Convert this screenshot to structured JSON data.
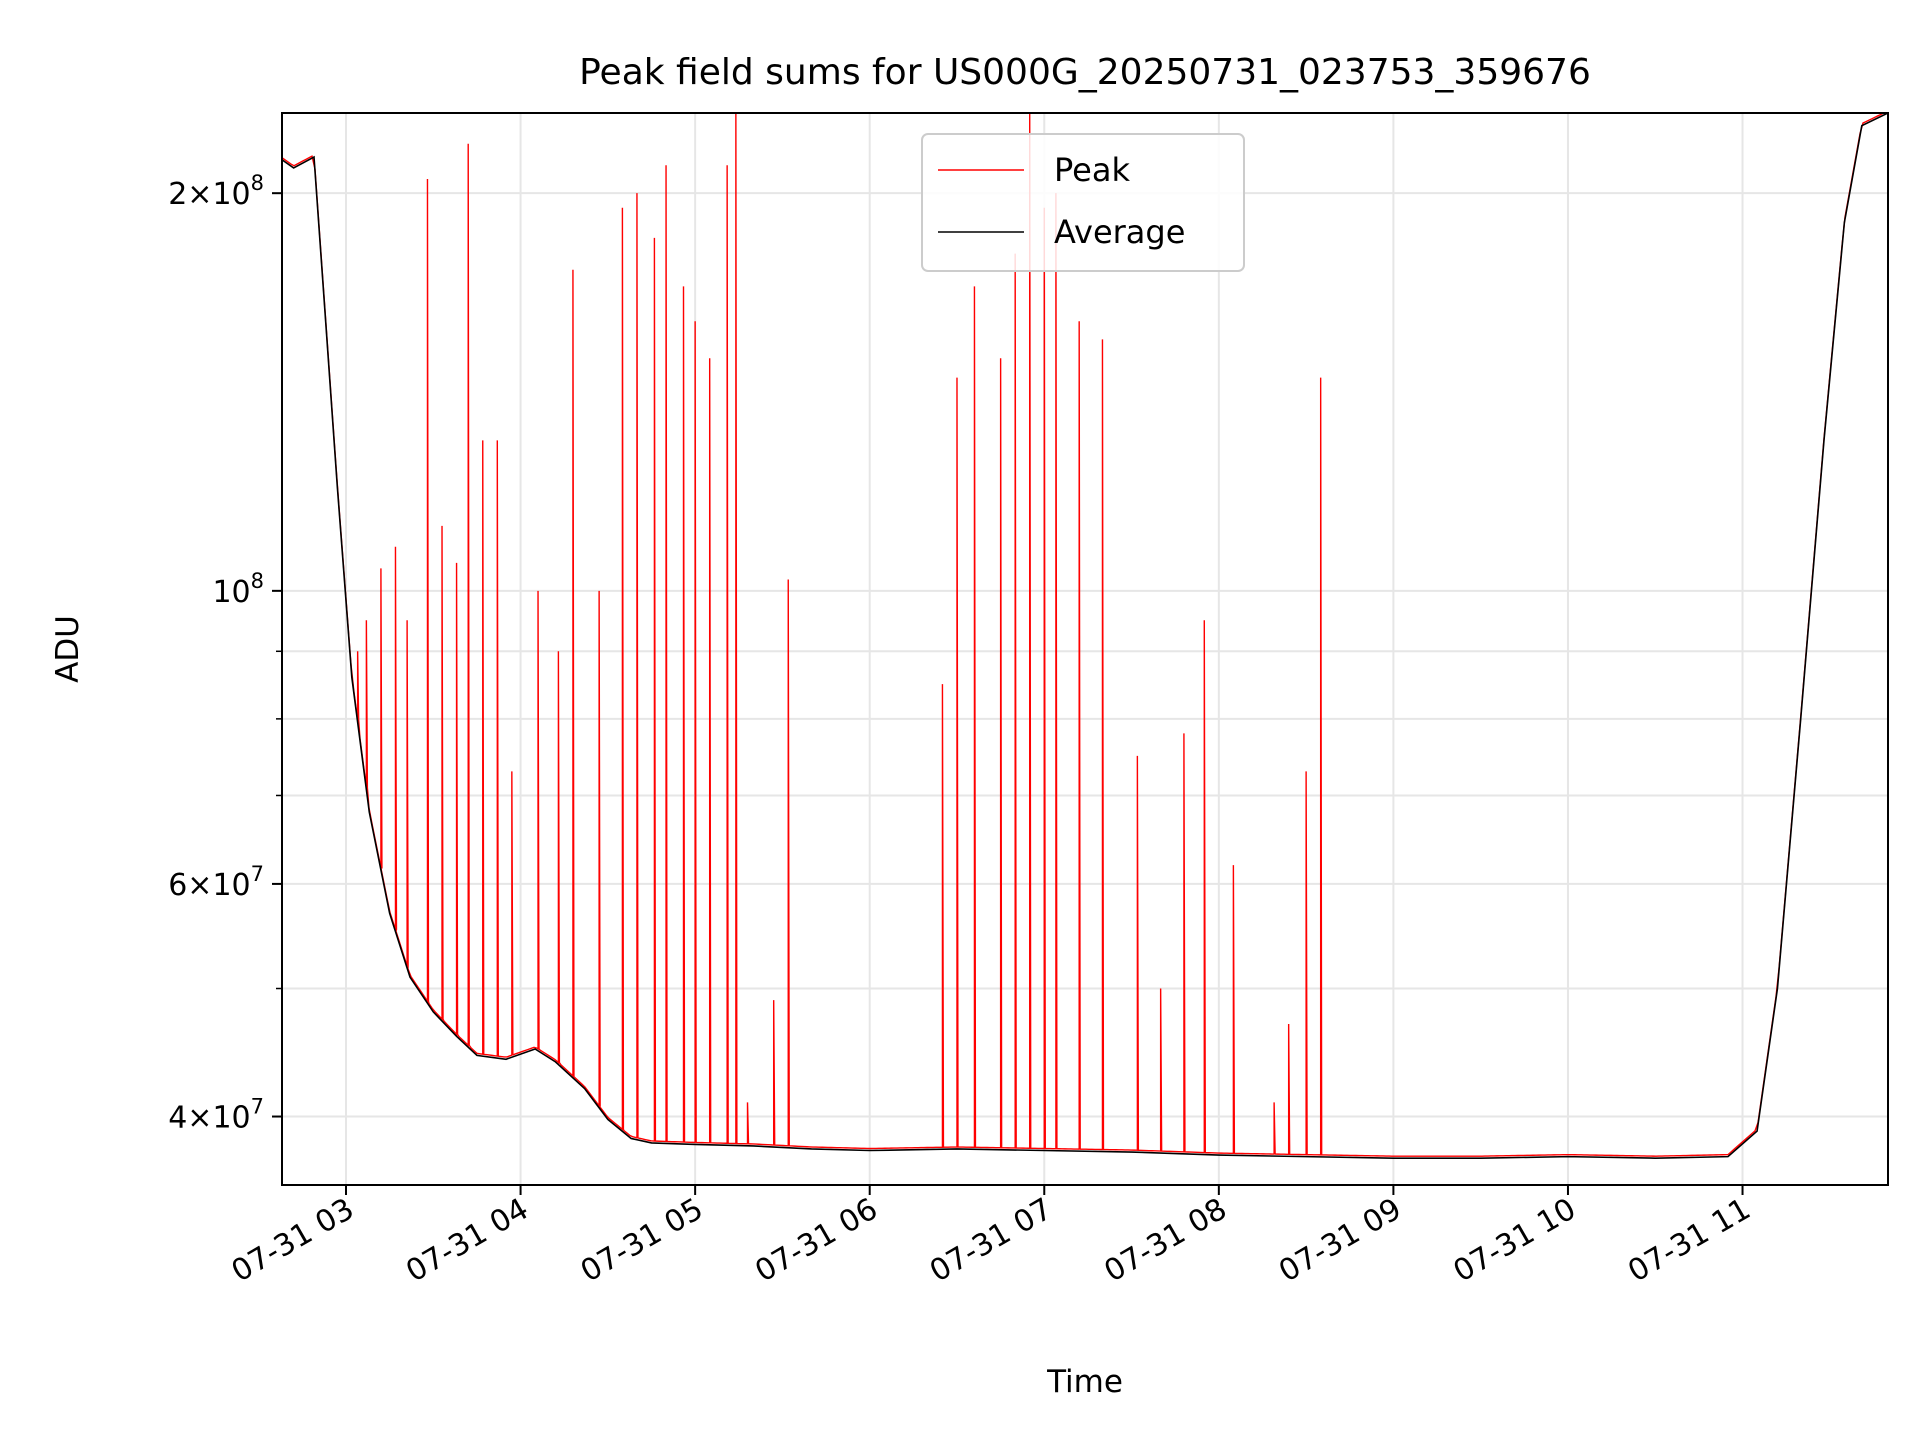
{
  "chart_data": {
    "type": "line",
    "title": "Peak field sums for US000G_20250731_023753_359676",
    "xlabel": "Time",
    "ylabel": "ADU",
    "x_scale": "time",
    "y_scale": "log",
    "xlim": [
      "2025-07-31 02:38",
      "2025-07-31 11:50"
    ],
    "ylim": [
      35500000.0,
      230000000.0
    ],
    "grid": true,
    "legend_position": "top-center",
    "x_ticks": [
      {
        "value": "2025-07-31 03:00",
        "label": "07-31 03"
      },
      {
        "value": "2025-07-31 04:00",
        "label": "07-31 04"
      },
      {
        "value": "2025-07-31 05:00",
        "label": "07-31 05"
      },
      {
        "value": "2025-07-31 06:00",
        "label": "07-31 06"
      },
      {
        "value": "2025-07-31 07:00",
        "label": "07-31 07"
      },
      {
        "value": "2025-07-31 08:00",
        "label": "07-31 08"
      },
      {
        "value": "2025-07-31 09:00",
        "label": "07-31 09"
      },
      {
        "value": "2025-07-31 10:00",
        "label": "07-31 10"
      },
      {
        "value": "2025-07-31 11:00",
        "label": "07-31 11"
      }
    ],
    "y_ticks": [
      {
        "value": 40000000,
        "mantissa": "4",
        "exp": "7"
      },
      {
        "value": 60000000,
        "mantissa": "6",
        "exp": "7"
      },
      {
        "value": 100000000,
        "mantissa": "",
        "exp": "8"
      },
      {
        "value": 200000000,
        "mantissa": "2",
        "exp": "8"
      }
    ],
    "y_minor_ticks": [
      50000000,
      70000000,
      80000000,
      90000000
    ],
    "series": [
      {
        "name": "Average",
        "color": "#000000",
        "points": [
          [
            "2025-07-31 02:38",
            212000000.0
          ],
          [
            "2025-07-31 02:42",
            209000000.0
          ],
          [
            "2025-07-31 02:49",
            213000000.0
          ],
          [
            "2025-07-31 02:53",
            160000000.0
          ],
          [
            "2025-07-31 02:57",
            120000000.0
          ],
          [
            "2025-07-31 03:02",
            86000000.0
          ],
          [
            "2025-07-31 03:08",
            68000000.0
          ],
          [
            "2025-07-31 03:15",
            57000000.0
          ],
          [
            "2025-07-31 03:22",
            51000000.0
          ],
          [
            "2025-07-31 03:30",
            48000000.0
          ],
          [
            "2025-07-31 03:38",
            46000000.0
          ],
          [
            "2025-07-31 03:45",
            44500000.0
          ],
          [
            "2025-07-31 03:55",
            44200000.0
          ],
          [
            "2025-07-31 04:05",
            45000000.0
          ],
          [
            "2025-07-31 04:12",
            44000000.0
          ],
          [
            "2025-07-31 04:22",
            42000000.0
          ],
          [
            "2025-07-31 04:30",
            39800000.0
          ],
          [
            "2025-07-31 04:38",
            38500000.0
          ],
          [
            "2025-07-31 04:45",
            38200000.0
          ],
          [
            "2025-07-31 05:00",
            38100000.0
          ],
          [
            "2025-07-31 05:20",
            38000000.0
          ],
          [
            "2025-07-31 05:40",
            37800000.0
          ],
          [
            "2025-07-31 06:00",
            37700000.0
          ],
          [
            "2025-07-31 06:30",
            37800000.0
          ],
          [
            "2025-07-31 07:00",
            37700000.0
          ],
          [
            "2025-07-31 07:30",
            37600000.0
          ],
          [
            "2025-07-31 08:00",
            37400000.0
          ],
          [
            "2025-07-31 08:30",
            37300000.0
          ],
          [
            "2025-07-31 09:00",
            37200000.0
          ],
          [
            "2025-07-31 09:30",
            37200000.0
          ],
          [
            "2025-07-31 10:00",
            37300000.0
          ],
          [
            "2025-07-31 10:30",
            37200000.0
          ],
          [
            "2025-07-31 10:55",
            37300000.0
          ],
          [
            "2025-07-31 11:05",
            39000000.0
          ],
          [
            "2025-07-31 11:12",
            50000000.0
          ],
          [
            "2025-07-31 11:20",
            80000000.0
          ],
          [
            "2025-07-31 11:28",
            130000000.0
          ],
          [
            "2025-07-31 11:35",
            190000000.0
          ],
          [
            "2025-07-31 11:41",
            225000000.0
          ],
          [
            "2025-07-31 11:50",
            230000000.0
          ]
        ]
      },
      {
        "name": "Peak",
        "color": "#ff0000",
        "spikes": [
          [
            "2025-07-31 03:04",
            90000000.0
          ],
          [
            "2025-07-31 03:07",
            95000000.0
          ],
          [
            "2025-07-31 03:12",
            104000000.0
          ],
          [
            "2025-07-31 03:17",
            108000000.0
          ],
          [
            "2025-07-31 03:21",
            95000000.0
          ],
          [
            "2025-07-31 03:28",
            205000000.0
          ],
          [
            "2025-07-31 03:33",
            112000000.0
          ],
          [
            "2025-07-31 03:38",
            105000000.0
          ],
          [
            "2025-07-31 03:42",
            218000000.0
          ],
          [
            "2025-07-31 03:47",
            130000000.0
          ],
          [
            "2025-07-31 03:52",
            130000000.0
          ],
          [
            "2025-07-31 03:57",
            73000000.0
          ],
          [
            "2025-07-31 04:06",
            100000000.0
          ],
          [
            "2025-07-31 04:13",
            90000000.0
          ],
          [
            "2025-07-31 04:18",
            175000000.0
          ],
          [
            "2025-07-31 04:27",
            100000000.0
          ],
          [
            "2025-07-31 04:35",
            195000000.0
          ],
          [
            "2025-07-31 04:40",
            200000000.0
          ],
          [
            "2025-07-31 04:46",
            185000000.0
          ],
          [
            "2025-07-31 04:50",
            210000000.0
          ],
          [
            "2025-07-31 04:56",
            170000000.0
          ],
          [
            "2025-07-31 05:00",
            160000000.0
          ],
          [
            "2025-07-31 05:05",
            150000000.0
          ],
          [
            "2025-07-31 05:11",
            210000000.0
          ],
          [
            "2025-07-31 05:14",
            230000000.0
          ],
          [
            "2025-07-31 05:18",
            41000000.0
          ],
          [
            "2025-07-31 05:27",
            49000000.0
          ],
          [
            "2025-07-31 05:32",
            102000000.0
          ],
          [
            "2025-07-31 06:25",
            85000000.0
          ],
          [
            "2025-07-31 06:30",
            145000000.0
          ],
          [
            "2025-07-31 06:36",
            170000000.0
          ],
          [
            "2025-07-31 06:45",
            150000000.0
          ],
          [
            "2025-07-31 06:50",
            180000000.0
          ],
          [
            "2025-07-31 06:55",
            230000000.0
          ],
          [
            "2025-07-31 07:00",
            195000000.0
          ],
          [
            "2025-07-31 07:04",
            200000000.0
          ],
          [
            "2025-07-31 07:12",
            160000000.0
          ],
          [
            "2025-07-31 07:20",
            155000000.0
          ],
          [
            "2025-07-31 07:32",
            75000000.0
          ],
          [
            "2025-07-31 07:40",
            50000000.0
          ],
          [
            "2025-07-31 07:48",
            78000000.0
          ],
          [
            "2025-07-31 07:55",
            95000000.0
          ],
          [
            "2025-07-31 08:05",
            62000000.0
          ],
          [
            "2025-07-31 08:19",
            41000000.0
          ],
          [
            "2025-07-31 08:24",
            47000000.0
          ],
          [
            "2025-07-31 08:30",
            73000000.0
          ],
          [
            "2025-07-31 08:35",
            145000000.0
          ]
        ]
      }
    ]
  }
}
